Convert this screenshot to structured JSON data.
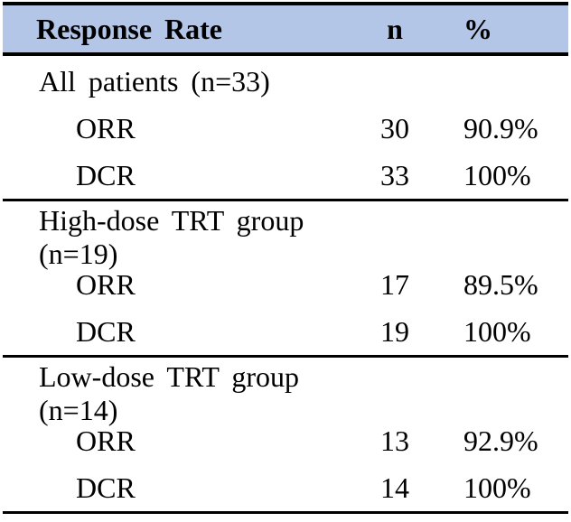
{
  "table": {
    "title_column": "Response Rate",
    "columns": {
      "n": "n",
      "pct": "%"
    },
    "header_bg_color": "#b4c6e7",
    "rule_color": "#000000",
    "sections": [
      {
        "label": "All patients (n=33)",
        "rows": [
          {
            "label": "ORR",
            "n": "30",
            "pct": "90.9%"
          },
          {
            "label": "DCR",
            "n": "33",
            "pct": "100%"
          }
        ]
      },
      {
        "label": "High-dose TRT group (n=19)",
        "rows": [
          {
            "label": "ORR",
            "n": "17",
            "pct": "89.5%"
          },
          {
            "label": "DCR",
            "n": "19",
            "pct": "100%"
          }
        ]
      },
      {
        "label": "Low-dose TRT group (n=14)",
        "rows": [
          {
            "label": "ORR",
            "n": "13",
            "pct": "92.9%"
          },
          {
            "label": "DCR",
            "n": "14",
            "pct": "100%"
          }
        ]
      }
    ]
  }
}
